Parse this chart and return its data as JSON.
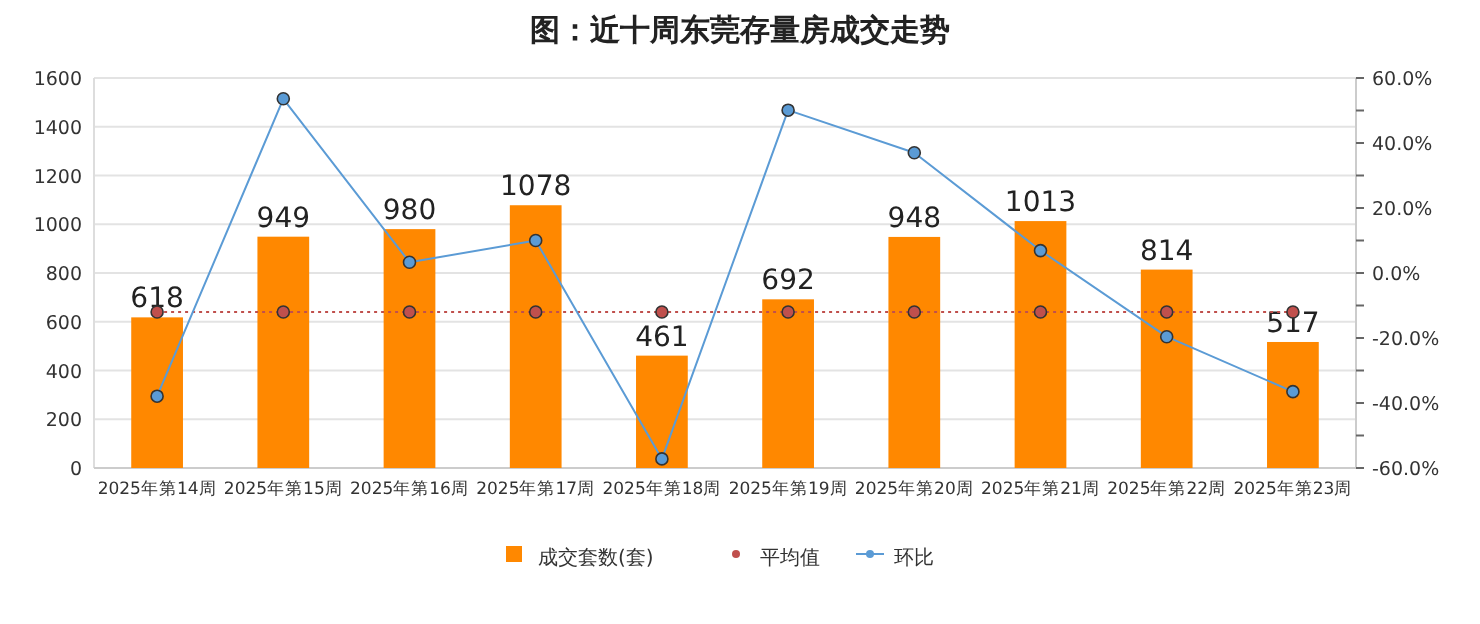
{
  "chart_data": {
    "type": "bar",
    "title": "图：近十周东莞存量房成交走势",
    "categories": [
      "2025年第14周",
      "2025年第15周",
      "2025年第16周",
      "2025年第17周",
      "2025年第18周",
      "2025年第19周",
      "2025年第20周",
      "2025年第21周",
      "2025年第22周",
      "2025年第23周"
    ],
    "series": [
      {
        "name": "成交套数(套)",
        "color": "#ff8800",
        "values": [
          618,
          949,
          980,
          1078,
          461,
          692,
          948,
          1013,
          814,
          517
        ],
        "value_labels": [
          "618",
          "949",
          "980",
          "1078",
          "461",
          "692",
          "948",
          "1013",
          "814",
          "517"
        ]
      },
      {
        "name": "平均值",
        "type": "line",
        "color": "#c0504d",
        "line_style": "dotted",
        "values": [
          640,
          640,
          640,
          640,
          640,
          640,
          640,
          640,
          640,
          640
        ]
      },
      {
        "name": "环比",
        "type": "line",
        "axis": "y2",
        "color": "#5b9bd5",
        "line_style": "solid",
        "values": [
          -37.9,
          53.6,
          3.3,
          10.0,
          -57.2,
          50.1,
          37.0,
          6.9,
          -19.6,
          -36.5
        ]
      }
    ],
    "ylim": [
      0,
      1600
    ],
    "yticks": [
      0,
      200,
      400,
      600,
      800,
      1000,
      1200,
      1400,
      1600
    ],
    "y2lim": [
      -60,
      60
    ],
    "y2ticks": [
      {
        "value": -60,
        "label": "-60.0%"
      },
      {
        "value": -50,
        "label": null
      },
      {
        "value": -40,
        "label": "-40.0%"
      },
      {
        "value": -30,
        "label": null
      },
      {
        "value": -20,
        "label": "-20.0%"
      },
      {
        "value": -10,
        "label": null
      },
      {
        "value": 0,
        "label": "0.0%"
      },
      {
        "value": 10,
        "label": null
      },
      {
        "value": 20,
        "label": "20.0%"
      },
      {
        "value": 30,
        "label": null
      },
      {
        "value": 40,
        "label": "40.0%"
      },
      {
        "value": 50,
        "label": null
      },
      {
        "value": 60,
        "label": "60.0%"
      }
    ],
    "grid": "y",
    "legend": "bottom",
    "marker": "circle"
  }
}
